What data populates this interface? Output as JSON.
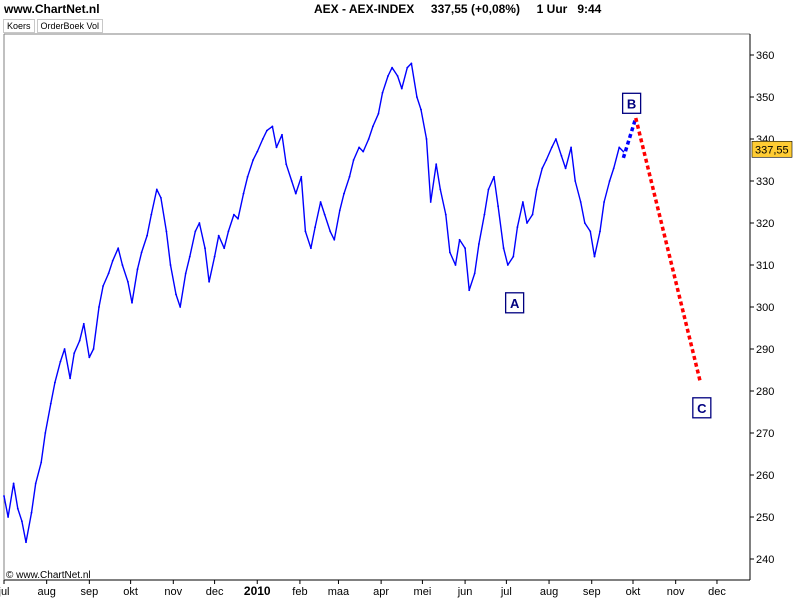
{
  "header": {
    "site": "www.ChartNet.nl",
    "instrument_line": "AEX - AEX-INDEX     337,55 (+0,08%)     1 Uur   9:44"
  },
  "tabs": [
    {
      "label": "Koers"
    },
    {
      "label": "OrderBoek Vol"
    }
  ],
  "copyright": "© www.ChartNet.nl",
  "colors": {
    "price_line": "#0000ff",
    "projection_up": "#0000ff",
    "projection_down": "#ff0000",
    "label_box_border": "#000080",
    "price_tag_bg": "#ffcc33",
    "axis": "#000000"
  },
  "chart_data": {
    "type": "line",
    "title": "",
    "xlabel": "",
    "ylabel": "",
    "ylim": [
      235,
      365
    ],
    "y_ticks": [
      240,
      250,
      260,
      270,
      280,
      290,
      300,
      310,
      320,
      330,
      340,
      350,
      360
    ],
    "y_tick_labels": [
      "240",
      "250",
      "260",
      "270",
      "280",
      "290",
      "300",
      "310",
      "320",
      "330",
      "340",
      "350",
      "360"
    ],
    "x_axis": {
      "range": [
        "2009-07-01",
        "2010-12-25"
      ],
      "ticks": [
        {
          "date": "2009-07-01",
          "label": "jul"
        },
        {
          "date": "2009-08-01",
          "label": "aug"
        },
        {
          "date": "2009-09-01",
          "label": "sep"
        },
        {
          "date": "2009-10-01",
          "label": "okt"
        },
        {
          "date": "2009-11-01",
          "label": "nov"
        },
        {
          "date": "2009-12-01",
          "label": "dec"
        },
        {
          "date": "2010-01-01",
          "label": "2010",
          "bold": true
        },
        {
          "date": "2010-02-01",
          "label": "feb"
        },
        {
          "date": "2010-03-01",
          "label": "maa"
        },
        {
          "date": "2010-04-01",
          "label": "apr"
        },
        {
          "date": "2010-05-01",
          "label": "mei"
        },
        {
          "date": "2010-06-01",
          "label": "jun"
        },
        {
          "date": "2010-07-01",
          "label": "jul"
        },
        {
          "date": "2010-08-01",
          "label": "aug"
        },
        {
          "date": "2010-09-01",
          "label": "sep"
        },
        {
          "date": "2010-10-01",
          "label": "okt"
        },
        {
          "date": "2010-11-01",
          "label": "nov"
        },
        {
          "date": "2010-12-01",
          "label": "dec"
        }
      ]
    },
    "series": [
      {
        "points": [
          [
            "2009-07-01",
            255
          ],
          [
            "2009-07-04",
            250
          ],
          [
            "2009-07-08",
            258
          ],
          [
            "2009-07-11",
            252
          ],
          [
            "2009-07-14",
            249
          ],
          [
            "2009-07-17",
            244
          ],
          [
            "2009-07-21",
            251
          ],
          [
            "2009-07-24",
            258
          ],
          [
            "2009-07-28",
            263
          ],
          [
            "2009-07-31",
            270
          ],
          [
            "2009-08-04",
            277
          ],
          [
            "2009-08-07",
            282
          ],
          [
            "2009-08-11",
            287
          ],
          [
            "2009-08-14",
            290
          ],
          [
            "2009-08-18",
            283
          ],
          [
            "2009-08-21",
            289
          ],
          [
            "2009-08-25",
            292
          ],
          [
            "2009-08-28",
            296
          ],
          [
            "2009-09-01",
            288
          ],
          [
            "2009-09-04",
            290
          ],
          [
            "2009-09-08",
            300
          ],
          [
            "2009-09-11",
            305
          ],
          [
            "2009-09-15",
            308
          ],
          [
            "2009-09-18",
            311
          ],
          [
            "2009-09-22",
            314
          ],
          [
            "2009-09-25",
            310
          ],
          [
            "2009-09-29",
            306
          ],
          [
            "2009-10-02",
            301
          ],
          [
            "2009-10-06",
            309
          ],
          [
            "2009-10-09",
            313
          ],
          [
            "2009-10-13",
            317
          ],
          [
            "2009-10-16",
            322
          ],
          [
            "2009-10-20",
            328
          ],
          [
            "2009-10-23",
            326
          ],
          [
            "2009-10-27",
            318
          ],
          [
            "2009-10-30",
            310
          ],
          [
            "2009-11-03",
            303
          ],
          [
            "2009-11-06",
            300
          ],
          [
            "2009-11-10",
            308
          ],
          [
            "2009-11-13",
            312
          ],
          [
            "2009-11-17",
            318
          ],
          [
            "2009-11-20",
            320
          ],
          [
            "2009-11-24",
            314
          ],
          [
            "2009-11-27",
            306
          ],
          [
            "2009-12-01",
            312
          ],
          [
            "2009-12-04",
            317
          ],
          [
            "2009-12-08",
            314
          ],
          [
            "2009-12-11",
            318
          ],
          [
            "2009-12-15",
            322
          ],
          [
            "2009-12-18",
            321
          ],
          [
            "2009-12-22",
            327
          ],
          [
            "2009-12-25",
            331
          ],
          [
            "2009-12-29",
            335
          ],
          [
            "2010-01-01",
            337
          ],
          [
            "2010-01-05",
            340
          ],
          [
            "2010-01-08",
            342
          ],
          [
            "2010-01-12",
            343
          ],
          [
            "2010-01-15",
            338
          ],
          [
            "2010-01-19",
            341
          ],
          [
            "2010-01-22",
            334
          ],
          [
            "2010-01-26",
            330
          ],
          [
            "2010-01-29",
            327
          ],
          [
            "2010-02-02",
            331
          ],
          [
            "2010-02-05",
            318
          ],
          [
            "2010-02-09",
            314
          ],
          [
            "2010-02-12",
            319
          ],
          [
            "2010-02-16",
            325
          ],
          [
            "2010-02-19",
            322
          ],
          [
            "2010-02-23",
            318
          ],
          [
            "2010-02-26",
            316
          ],
          [
            "2010-03-02",
            323
          ],
          [
            "2010-03-05",
            327
          ],
          [
            "2010-03-09",
            331
          ],
          [
            "2010-03-12",
            335
          ],
          [
            "2010-03-16",
            338
          ],
          [
            "2010-03-19",
            337
          ],
          [
            "2010-03-23",
            340
          ],
          [
            "2010-03-26",
            343
          ],
          [
            "2010-03-30",
            346
          ],
          [
            "2010-04-02",
            351
          ],
          [
            "2010-04-06",
            355
          ],
          [
            "2010-04-09",
            357
          ],
          [
            "2010-04-13",
            355
          ],
          [
            "2010-04-16",
            352
          ],
          [
            "2010-04-20",
            357
          ],
          [
            "2010-04-23",
            358
          ],
          [
            "2010-04-27",
            350
          ],
          [
            "2010-04-30",
            347
          ],
          [
            "2010-05-04",
            340
          ],
          [
            "2010-05-07",
            325
          ],
          [
            "2010-05-11",
            334
          ],
          [
            "2010-05-14",
            328
          ],
          [
            "2010-05-18",
            322
          ],
          [
            "2010-05-21",
            313
          ],
          [
            "2010-05-25",
            310
          ],
          [
            "2010-05-28",
            316
          ],
          [
            "2010-06-01",
            314
          ],
          [
            "2010-06-04",
            304
          ],
          [
            "2010-06-08",
            308
          ],
          [
            "2010-06-11",
            315
          ],
          [
            "2010-06-15",
            322
          ],
          [
            "2010-06-18",
            328
          ],
          [
            "2010-06-22",
            331
          ],
          [
            "2010-06-25",
            324
          ],
          [
            "2010-06-29",
            314
          ],
          [
            "2010-07-02",
            310
          ],
          [
            "2010-07-06",
            312
          ],
          [
            "2010-07-09",
            319
          ],
          [
            "2010-07-13",
            325
          ],
          [
            "2010-07-16",
            320
          ],
          [
            "2010-07-20",
            322
          ],
          [
            "2010-07-23",
            328
          ],
          [
            "2010-07-27",
            333
          ],
          [
            "2010-07-30",
            335
          ],
          [
            "2010-08-03",
            338
          ],
          [
            "2010-08-06",
            340
          ],
          [
            "2010-08-10",
            336
          ],
          [
            "2010-08-13",
            333
          ],
          [
            "2010-08-17",
            338
          ],
          [
            "2010-08-20",
            330
          ],
          [
            "2010-08-24",
            325
          ],
          [
            "2010-08-27",
            320
          ],
          [
            "2010-08-31",
            318
          ],
          [
            "2010-09-03",
            312
          ],
          [
            "2010-09-07",
            318
          ],
          [
            "2010-09-10",
            325
          ],
          [
            "2010-09-14",
            330
          ],
          [
            "2010-09-17",
            333
          ],
          [
            "2010-09-21",
            338
          ],
          [
            "2010-09-24",
            337
          ]
        ]
      }
    ],
    "projection": {
      "up_segment": [
        [
          "2010-09-24",
          335.5
        ],
        [
          "2010-10-03",
          345
        ]
      ],
      "down_segment": [
        [
          "2010-10-03",
          345
        ],
        [
          "2010-11-19",
          282
        ]
      ]
    },
    "annotations": [
      {
        "text": "A",
        "date": "2010-07-07",
        "value": 301
      },
      {
        "text": "B",
        "date": "2010-09-30",
        "value": 348.5
      },
      {
        "text": "C",
        "date": "2010-11-20",
        "value": 276
      }
    ],
    "last_price_label": {
      "text": "337,55",
      "value": 337.55
    },
    "grid": false,
    "legend": "none"
  }
}
